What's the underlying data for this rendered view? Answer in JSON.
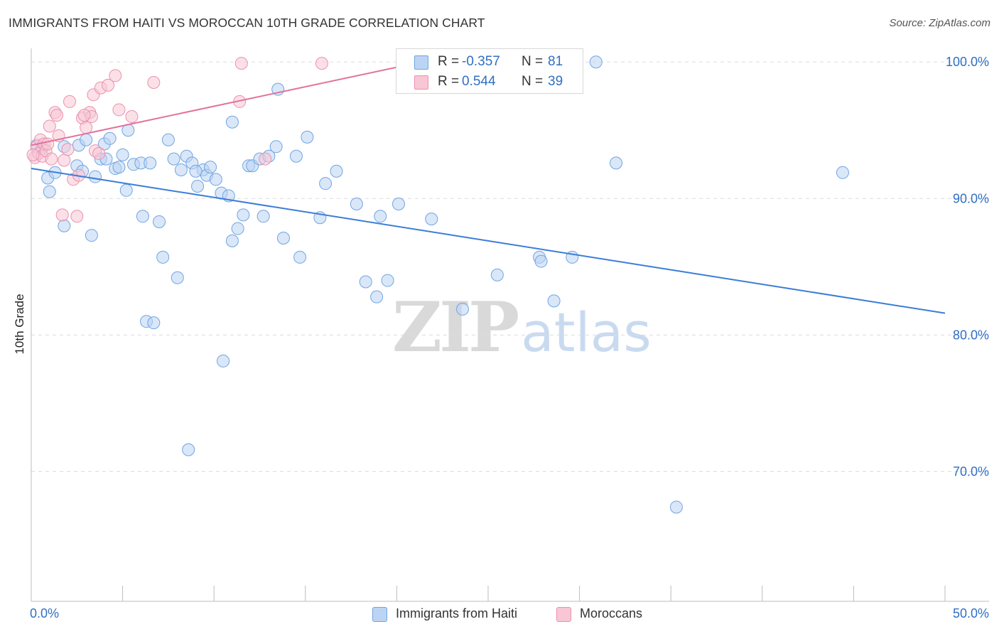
{
  "title": "IMMIGRANTS FROM HAITI VS MOROCCAN 10TH GRADE CORRELATION CHART",
  "source": "Source: ZipAtlas.com",
  "watermark": {
    "zip": "ZIP",
    "atlas": "atlas"
  },
  "legend": {
    "r_label": "R =",
    "n_label": "N =",
    "rows": [
      {
        "r": "-0.357",
        "n": "81",
        "color": "#6fa5e2",
        "fill": "#bcd4f3"
      },
      {
        "r": "0.544",
        "n": "39",
        "color": "#ec91ad",
        "fill": "#f8c6d5"
      }
    ]
  },
  "chart_data": {
    "type": "scatter",
    "ylabel": "10th Grade",
    "xlabel": "",
    "xlim": [
      0,
      50
    ],
    "ylim": [
      60.5,
      101
    ],
    "x_tick_labels": [
      {
        "value": 0,
        "label": "0.0%"
      },
      {
        "value": 50,
        "label": "50.0%"
      }
    ],
    "y_tick_labels": [
      {
        "value": 100,
        "label": "100.0%"
      },
      {
        "value": 90,
        "label": "90.0%"
      },
      {
        "value": 80,
        "label": "80.0%"
      },
      {
        "value": 70,
        "label": "70.0%"
      }
    ],
    "y_gridlines": [
      100,
      90,
      80,
      70
    ],
    "x_minor_ticks": [
      0,
      5,
      10,
      15,
      20,
      25,
      30,
      35,
      40,
      45,
      50
    ],
    "grid": true,
    "legend_position": "top-center",
    "series": [
      {
        "name": "Immigrants from Haiti",
        "color": "#3b7dd8",
        "marker_fill": "#bcd4f3",
        "marker_edge": "#6fa5e2",
        "points": [
          [
            0.3,
            93.9
          ],
          [
            0.6,
            93.7
          ],
          [
            0.9,
            91.5
          ],
          [
            1.3,
            91.9
          ],
          [
            1.0,
            90.5
          ],
          [
            1.8,
            93.8
          ],
          [
            1.8,
            88.0
          ],
          [
            2.5,
            92.4
          ],
          [
            2.8,
            92.0
          ],
          [
            2.6,
            93.9
          ],
          [
            3.0,
            94.3
          ],
          [
            3.3,
            87.3
          ],
          [
            3.5,
            91.6
          ],
          [
            3.8,
            92.9
          ],
          [
            4.0,
            94.0
          ],
          [
            4.1,
            92.9
          ],
          [
            4.3,
            94.4
          ],
          [
            4.6,
            92.2
          ],
          [
            4.8,
            92.3
          ],
          [
            5.0,
            93.2
          ],
          [
            5.2,
            90.6
          ],
          [
            5.3,
            95.0
          ],
          [
            5.6,
            92.5
          ],
          [
            6.0,
            92.6
          ],
          [
            6.1,
            88.7
          ],
          [
            6.5,
            92.6
          ],
          [
            7.0,
            88.3
          ],
          [
            7.2,
            85.7
          ],
          [
            7.5,
            94.3
          ],
          [
            7.8,
            92.9
          ],
          [
            8.0,
            84.2
          ],
          [
            8.2,
            92.1
          ],
          [
            8.5,
            93.1
          ],
          [
            8.6,
            71.6
          ],
          [
            8.8,
            92.6
          ],
          [
            9.1,
            90.9
          ],
          [
            9.4,
            92.1
          ],
          [
            9.6,
            91.7
          ],
          [
            9.8,
            92.3
          ],
          [
            10.1,
            91.4
          ],
          [
            10.4,
            90.4
          ],
          [
            10.8,
            90.2
          ],
          [
            11.0,
            86.9
          ],
          [
            11.0,
            95.6
          ],
          [
            11.3,
            87.8
          ],
          [
            11.6,
            88.8
          ],
          [
            11.9,
            92.4
          ],
          [
            12.1,
            92.4
          ],
          [
            12.5,
            92.9
          ],
          [
            12.7,
            88.7
          ],
          [
            13.0,
            93.1
          ],
          [
            13.4,
            93.8
          ],
          [
            13.5,
            98.0
          ],
          [
            13.8,
            87.1
          ],
          [
            14.5,
            93.1
          ],
          [
            14.7,
            85.7
          ],
          [
            15.1,
            94.5
          ],
          [
            15.8,
            88.6
          ],
          [
            16.1,
            91.1
          ],
          [
            16.7,
            92.0
          ],
          [
            17.8,
            89.6
          ],
          [
            18.3,
            83.9
          ],
          [
            18.9,
            82.8
          ],
          [
            19.1,
            88.7
          ],
          [
            19.5,
            84.0
          ],
          [
            20.1,
            89.6
          ],
          [
            21.9,
            88.5
          ],
          [
            23.6,
            81.9
          ],
          [
            25.5,
            84.4
          ],
          [
            27.8,
            85.7
          ],
          [
            27.9,
            85.4
          ],
          [
            28.6,
            82.5
          ],
          [
            29.6,
            85.7
          ],
          [
            30.9,
            100.0
          ],
          [
            32.0,
            92.6
          ],
          [
            35.3,
            67.4
          ],
          [
            44.4,
            91.9
          ],
          [
            6.3,
            81.0
          ],
          [
            6.7,
            80.9
          ],
          [
            10.5,
            78.1
          ],
          [
            9.0,
            92.0
          ]
        ],
        "trend": {
          "x": [
            0,
            50
          ],
          "y": [
            92.2,
            81.6
          ]
        }
      },
      {
        "name": "Moroccans",
        "color": "#e2729b",
        "marker_fill": "#f8c6d5",
        "marker_edge": "#ec91ad",
        "points": [
          [
            0.2,
            93.0
          ],
          [
            0.3,
            93.8
          ],
          [
            0.4,
            93.3
          ],
          [
            0.5,
            94.3
          ],
          [
            0.6,
            93.1
          ],
          [
            0.7,
            94.0
          ],
          [
            0.8,
            93.5
          ],
          [
            1.0,
            95.3
          ],
          [
            1.1,
            92.9
          ],
          [
            1.3,
            96.3
          ],
          [
            1.4,
            96.1
          ],
          [
            1.5,
            94.6
          ],
          [
            1.7,
            88.8
          ],
          [
            1.8,
            92.8
          ],
          [
            2.0,
            93.6
          ],
          [
            2.1,
            97.1
          ],
          [
            2.3,
            91.4
          ],
          [
            2.5,
            88.7
          ],
          [
            2.6,
            91.7
          ],
          [
            2.8,
            95.9
          ],
          [
            3.0,
            95.2
          ],
          [
            3.2,
            96.3
          ],
          [
            3.3,
            96.0
          ],
          [
            3.4,
            97.6
          ],
          [
            3.5,
            93.5
          ],
          [
            3.7,
            93.3
          ],
          [
            3.8,
            98.1
          ],
          [
            4.2,
            98.3
          ],
          [
            4.6,
            99.0
          ],
          [
            4.8,
            96.5
          ],
          [
            5.5,
            96.0
          ],
          [
            6.7,
            98.5
          ],
          [
            11.4,
            97.1
          ],
          [
            11.5,
            99.9
          ],
          [
            12.8,
            92.9
          ],
          [
            15.9,
            99.9
          ],
          [
            0.1,
            93.2
          ],
          [
            0.9,
            94.0
          ],
          [
            2.9,
            96.1
          ]
        ],
        "trend": {
          "x": [
            0,
            21.0
          ],
          "y": [
            93.9,
            99.9
          ]
        }
      }
    ]
  }
}
